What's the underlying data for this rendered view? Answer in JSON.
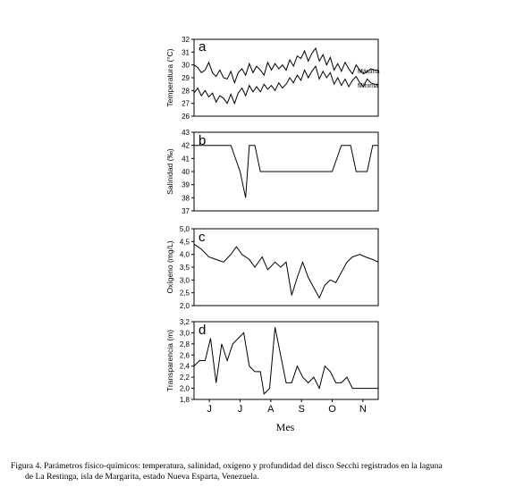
{
  "figure": {
    "caption_line1": "Figura 4. Parámetros físico-químicos: temperatura, salinidad, oxígeno y profundidad del disco Secchi registrados en la laguna",
    "caption_line2": "de La Restinga, isla de Margarita, estado Nueva Esparta, Venezuela.",
    "xlabel": "Mes",
    "months": [
      "J",
      "J",
      "A",
      "S",
      "O",
      "N"
    ]
  },
  "chart_data": [
    {
      "type": "line",
      "panel": "a",
      "ylabel": "Temperatura (°C)",
      "ylim": [
        26,
        32
      ],
      "yticks": [
        "26",
        "27",
        "28",
        "29",
        "30",
        "31",
        "32"
      ],
      "xlim": [
        0,
        100
      ],
      "series": [
        {
          "name": "Máxima",
          "x": [
            0,
            2,
            4,
            6,
            8,
            10,
            12,
            14,
            16,
            18,
            20,
            22,
            24,
            26,
            28,
            30,
            32,
            34,
            36,
            38,
            40,
            42,
            44,
            46,
            48,
            50,
            52,
            54,
            56,
            58,
            60,
            62,
            64,
            66,
            68,
            70,
            72,
            74,
            76,
            78,
            80,
            82,
            84,
            86,
            88,
            90,
            92,
            94,
            96,
            98,
            100
          ],
          "values": [
            30.0,
            29.8,
            29.4,
            29.6,
            30.2,
            29.4,
            29.1,
            29.6,
            29.0,
            28.9,
            29.5,
            28.6,
            29.4,
            29.7,
            29.2,
            30.1,
            29.4,
            29.9,
            29.6,
            29.2,
            30.2,
            29.6,
            30.1,
            29.7,
            30.0,
            29.6,
            30.4,
            29.9,
            30.7,
            30.5,
            31.1,
            30.3,
            30.9,
            31.3,
            30.3,
            30.8,
            30.0,
            30.6,
            29.6,
            30.1,
            29.5,
            30.2,
            29.7,
            29.3,
            30.0,
            29.6,
            29.3,
            29.5,
            29.7,
            29.6,
            29.6
          ]
        },
        {
          "name": "Mínima",
          "x": [
            0,
            2,
            4,
            6,
            8,
            10,
            12,
            14,
            16,
            18,
            20,
            22,
            24,
            26,
            28,
            30,
            32,
            34,
            36,
            38,
            40,
            42,
            44,
            46,
            48,
            50,
            52,
            54,
            56,
            58,
            60,
            62,
            64,
            66,
            68,
            70,
            72,
            74,
            76,
            78,
            80,
            82,
            84,
            86,
            88,
            90,
            92,
            94,
            96,
            98,
            100
          ],
          "values": [
            27.8,
            28.2,
            27.6,
            28.0,
            27.5,
            27.8,
            27.1,
            27.6,
            27.4,
            27.0,
            27.7,
            27.0,
            27.8,
            28.2,
            27.6,
            28.4,
            27.9,
            28.3,
            27.9,
            28.5,
            28.1,
            28.4,
            28.0,
            28.6,
            28.2,
            28.5,
            29.0,
            28.6,
            29.2,
            28.8,
            29.6,
            29.0,
            29.5,
            29.9,
            28.9,
            29.5,
            29.0,
            29.4,
            28.5,
            29.0,
            28.4,
            28.9,
            28.3,
            28.8,
            29.1,
            28.6,
            28.3,
            28.9,
            28.6,
            28.5,
            28.5
          ]
        }
      ]
    },
    {
      "type": "line",
      "panel": "b",
      "ylabel": "Salinidad (‰)",
      "ylim": [
        37,
        43
      ],
      "yticks": [
        "37",
        "38",
        "39",
        "40",
        "41",
        "42",
        "43"
      ],
      "xlim": [
        0,
        100
      ],
      "series": [
        {
          "x": [
            0,
            5,
            10,
            15,
            20,
            25,
            28,
            30,
            33,
            36,
            39,
            45,
            50,
            55,
            60,
            65,
            70,
            75,
            80,
            85,
            88,
            91,
            94,
            97,
            100
          ],
          "values": [
            42,
            42,
            42,
            42,
            42,
            40,
            38,
            42,
            42,
            40,
            40,
            40,
            40,
            40,
            40,
            40,
            40,
            40,
            42,
            42,
            40,
            40,
            40,
            42,
            42
          ]
        }
      ]
    },
    {
      "type": "line",
      "panel": "c",
      "ylabel": "Oxígeno (mg/L)",
      "ylim": [
        2.0,
        5.0
      ],
      "yticks": [
        "2,0",
        "2,5",
        "3,0",
        "3,5",
        "4,0",
        "4,5",
        "5,0"
      ],
      "xlim": [
        0,
        100
      ],
      "series": [
        {
          "x": [
            0,
            4,
            8,
            12,
            16,
            20,
            23,
            26,
            30,
            33,
            37,
            40,
            44,
            47,
            50,
            53,
            56,
            59,
            62,
            65,
            68,
            71,
            74,
            77,
            80,
            83,
            86,
            90,
            93,
            97,
            100
          ],
          "values": [
            4.4,
            4.2,
            3.9,
            3.8,
            3.7,
            4.0,
            4.3,
            4.0,
            3.8,
            3.5,
            3.9,
            3.4,
            3.7,
            3.5,
            3.7,
            2.4,
            3.1,
            3.7,
            3.1,
            2.7,
            2.3,
            2.8,
            3.0,
            2.9,
            3.3,
            3.7,
            3.9,
            4.0,
            3.9,
            3.8,
            3.7
          ]
        }
      ]
    },
    {
      "type": "line",
      "panel": "d",
      "ylabel": "Transparencia (m)",
      "ylim": [
        1.8,
        3.2
      ],
      "yticks": [
        "1,8",
        "2,0",
        "2,2",
        "2,4",
        "2,6",
        "2,8",
        "3,0",
        "3,2"
      ],
      "xlim": [
        0,
        100
      ],
      "series": [
        {
          "x": [
            0,
            3,
            6,
            9,
            12,
            15,
            18,
            21,
            24,
            27,
            30,
            33,
            36,
            38,
            41,
            44,
            47,
            50,
            53,
            56,
            59,
            62,
            65,
            68,
            71,
            74,
            77,
            80,
            83,
            86,
            89,
            92,
            95,
            98,
            100
          ],
          "values": [
            2.4,
            2.5,
            2.5,
            2.9,
            2.1,
            2.8,
            2.5,
            2.8,
            2.9,
            3.0,
            2.4,
            2.3,
            2.3,
            1.9,
            2.0,
            3.1,
            2.6,
            2.1,
            2.1,
            2.4,
            2.2,
            2.1,
            2.2,
            2.0,
            2.4,
            2.3,
            2.1,
            2.1,
            2.2,
            2.0,
            2.0,
            2.0,
            2.0,
            2.0,
            2.0
          ]
        }
      ]
    }
  ]
}
